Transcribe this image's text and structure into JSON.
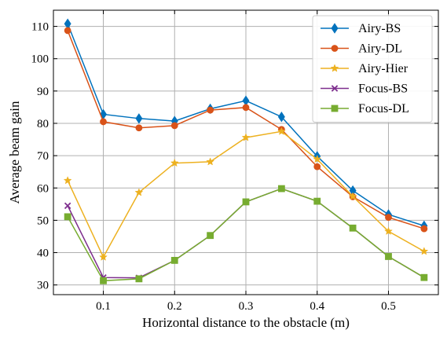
{
  "chart_data": {
    "type": "line",
    "xlabel": "Horizontal distance to the obstacle (m)",
    "ylabel": "Average beam gain",
    "xlim": [
      0.03,
      0.57
    ],
    "ylim": [
      27,
      115
    ],
    "xticks": [
      0.1,
      0.2,
      0.3,
      0.4,
      0.5
    ],
    "xtick_labels": [
      "0.1",
      "0.2",
      "0.3",
      "0.4",
      "0.5"
    ],
    "yticks": [
      30,
      40,
      50,
      60,
      70,
      80,
      90,
      100,
      110
    ],
    "ytick_labels": [
      "30",
      "40",
      "50",
      "60",
      "70",
      "80",
      "90",
      "100",
      "110"
    ],
    "grid": true,
    "legend_position": "top-right",
    "x": [
      0.05,
      0.1,
      0.15,
      0.2,
      0.25,
      0.3,
      0.35,
      0.4,
      0.45,
      0.5,
      0.55
    ],
    "series": [
      {
        "name": "Airy-BS",
        "color": "#0072BD",
        "marker": "diamond",
        "values": [
          110.8,
          82.8,
          81.5,
          80.7,
          84.5,
          87.0,
          82.0,
          69.8,
          59.2,
          51.8,
          48.3
        ]
      },
      {
        "name": "Airy-DL",
        "color": "#D95319",
        "marker": "circle",
        "values": [
          108.7,
          80.5,
          78.6,
          79.3,
          84.1,
          84.9,
          78.1,
          66.6,
          57.3,
          50.9,
          47.4
        ]
      },
      {
        "name": "Airy-Hier",
        "color": "#EDB120",
        "marker": "star",
        "values": [
          62.3,
          38.6,
          58.6,
          67.7,
          68.1,
          75.6,
          77.5,
          68.9,
          57.4,
          46.6,
          40.4
        ]
      },
      {
        "name": "Focus-BS",
        "color": "#7E2F8E",
        "marker": "x",
        "values": [
          54.5,
          32.3,
          32.2,
          37.6,
          45.3,
          55.7,
          59.8,
          55.9,
          47.6,
          38.8,
          32.3
        ]
      },
      {
        "name": "Focus-DL",
        "color": "#77AC30",
        "marker": "square",
        "values": [
          51.1,
          31.3,
          31.9,
          37.6,
          45.3,
          55.7,
          59.8,
          55.9,
          47.6,
          38.8,
          32.3
        ]
      }
    ]
  }
}
